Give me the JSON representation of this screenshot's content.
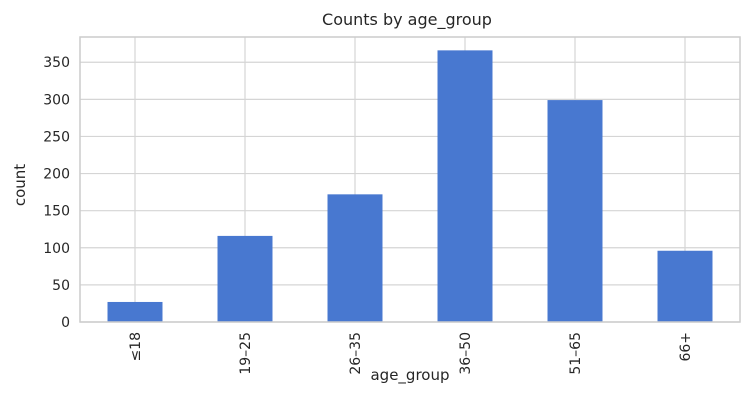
{
  "chart_data": {
    "type": "bar",
    "title": "Counts by age_group",
    "xlabel": "age_group",
    "ylabel": "count",
    "categories": [
      "≤18",
      "19–25",
      "26–35",
      "36–50",
      "51–65",
      "66+"
    ],
    "values": [
      27,
      116,
      172,
      366,
      299,
      96
    ],
    "yticks": [
      0,
      50,
      100,
      150,
      200,
      250,
      300,
      350
    ],
    "ylim": [
      0,
      384
    ],
    "grid": true,
    "bar_color": "#4878d0",
    "grid_color": "#d5d5d5",
    "spine_color": "#cccccc",
    "text_color": "#262626",
    "x_tick_rotation": "vertical"
  }
}
